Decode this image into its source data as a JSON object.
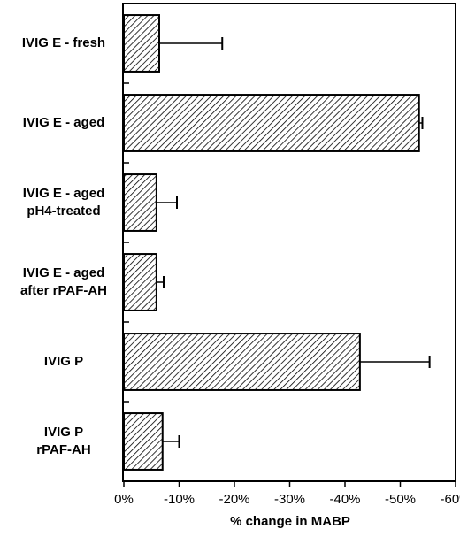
{
  "chart_data": {
    "type": "bar",
    "orientation": "horizontal",
    "x_label": "% change in MABP",
    "categories": [
      "IVIG E - fresh",
      "IVIG E - aged",
      "IVIG E - aged\npH4-treated",
      "IVIG E - aged\nafter rPAF-AH",
      "IVIG P",
      "IVIG P\nrPAF-AH"
    ],
    "values": [
      -6.4,
      -53.4,
      -5.9,
      -5.9,
      -42.7,
      -7.0
    ],
    "errors": [
      11.4,
      0.6,
      3.7,
      1.3,
      12.6,
      3.0
    ],
    "xlim": [
      0,
      -60
    ],
    "xticks": [
      {
        "value": 0,
        "label": "0%"
      },
      {
        "value": -10,
        "label": "-10%"
      },
      {
        "value": -20,
        "label": "-20%"
      },
      {
        "value": -30,
        "label": "-30%"
      },
      {
        "value": -40,
        "label": "-40%"
      },
      {
        "value": -50,
        "label": "-50%"
      },
      {
        "value": -60,
        "label": "-60%"
      }
    ],
    "color": "#000000",
    "hatch": true
  }
}
